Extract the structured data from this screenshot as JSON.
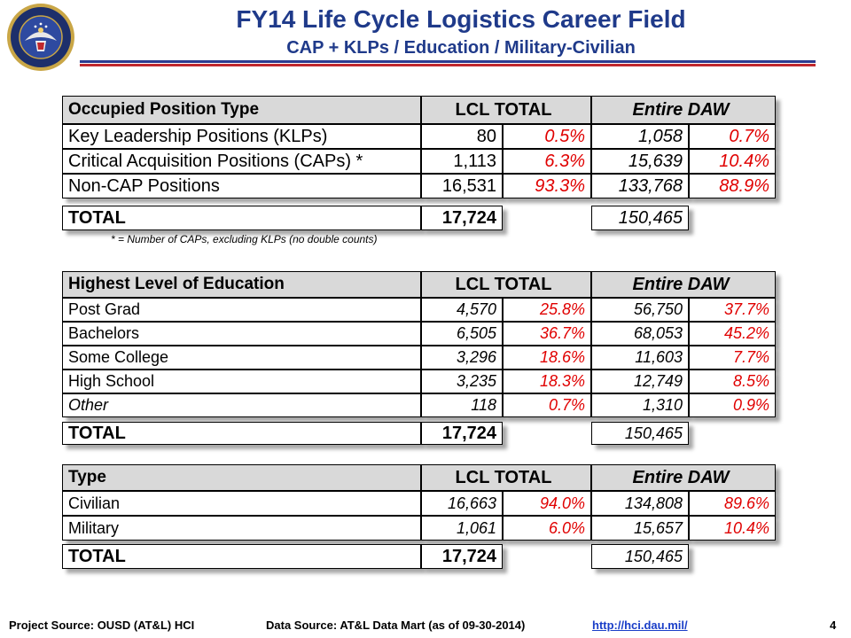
{
  "header": {
    "title": "FY14 Life Cycle Logistics Career Field",
    "subtitle": "CAP + KLPs / Education / Military-Civilian"
  },
  "columns": {
    "lcl_total": "LCL TOTAL",
    "entire_daw": "Entire DAW"
  },
  "table1": {
    "heading": "Occupied Position Type",
    "rows": [
      {
        "label": "Key Leadership Positions (KLPs)",
        "lcl": "80",
        "lcl_pct": "0.5%",
        "daw": "1,058",
        "daw_pct": "0.7%"
      },
      {
        "label": "Critical Acquisition Positions (CAPs)  *",
        "lcl": "1,113",
        "lcl_pct": "6.3%",
        "daw": "15,639",
        "daw_pct": "10.4%"
      },
      {
        "label": "Non-CAP Positions",
        "lcl": "16,531",
        "lcl_pct": "93.3%",
        "daw": "133,768",
        "daw_pct": "88.9%"
      }
    ],
    "total": {
      "label": "TOTAL",
      "lcl": "17,724",
      "daw": "150,465"
    },
    "note": "* = Number of CAPs, excluding KLPs (no double counts)"
  },
  "table2": {
    "heading": "Highest Level of Education",
    "rows": [
      {
        "label": "Post Grad",
        "lcl": "4,570",
        "lcl_pct": "25.8%",
        "daw": "56,750",
        "daw_pct": "37.7%"
      },
      {
        "label": "Bachelors",
        "lcl": "6,505",
        "lcl_pct": "36.7%",
        "daw": "68,053",
        "daw_pct": "45.2%"
      },
      {
        "label": "Some College",
        "lcl": "3,296",
        "lcl_pct": "18.6%",
        "daw": "11,603",
        "daw_pct": "7.7%"
      },
      {
        "label": "High School",
        "lcl": "3,235",
        "lcl_pct": "18.3%",
        "daw": "12,749",
        "daw_pct": "8.5%"
      },
      {
        "label": "Other",
        "lcl": "118",
        "lcl_pct": "0.7%",
        "daw": "1,310",
        "daw_pct": "0.9%"
      }
    ],
    "total": {
      "label": "TOTAL",
      "lcl": "17,724",
      "daw": "150,465"
    }
  },
  "table3": {
    "heading": "Type",
    "rows": [
      {
        "label": "Civilian",
        "lcl": "16,663",
        "lcl_pct": "94.0%",
        "daw": "134,808",
        "daw_pct": "89.6%"
      },
      {
        "label": "Military",
        "lcl": "1,061",
        "lcl_pct": "6.0%",
        "daw": "15,657",
        "daw_pct": "10.4%"
      }
    ],
    "total": {
      "label": "TOTAL",
      "lcl": "17,724",
      "daw": "150,465"
    }
  },
  "footer": {
    "project_source": "Project Source:  OUSD (AT&L)  HCI",
    "data_source": "Data Source: AT&L Data Mart (as of 09-30-2014)",
    "link": "http://hci.dau.mil/",
    "page_number": "4"
  },
  "colors": {
    "title": "#1f3a8a",
    "percent": "#e00000",
    "rule_blue": "#2b3a8f",
    "rule_red": "#c0282d"
  },
  "seal_icon": "department-of-defense-seal-icon"
}
